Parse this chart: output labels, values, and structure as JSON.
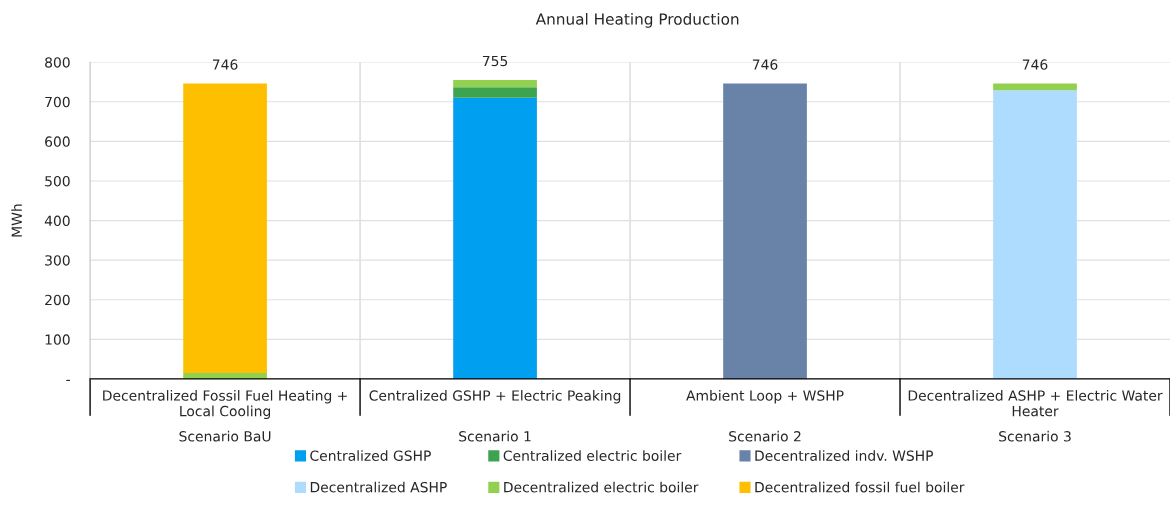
{
  "chart_data": {
    "type": "bar",
    "title": "Annual Heating Production",
    "ylabel": "MWh",
    "categories": [
      "Decentralized Fossil Fuel Heating + Local Cooling",
      "Centralized GSHP + Electric Peaking",
      "Ambient Loop + WSHP",
      "Decentralized ASHP + Electric Water Heater"
    ],
    "stacked": true,
    "series": [
      {
        "name": "Centralized GSHP",
        "color": "#009fef",
        "values": [
          0,
          710,
          0,
          0
        ]
      },
      {
        "name": "Centralized electric boiler",
        "color": "#3ca451",
        "values": [
          0,
          27,
          0,
          0
        ]
      },
      {
        "name": "Decentralized indv. WSHP",
        "color": "#6882a8",
        "values": [
          0,
          0,
          746,
          0
        ]
      },
      {
        "name": "Decentralized ASHP",
        "color": "#aedcff",
        "values": [
          0,
          0,
          0,
          729
        ]
      },
      {
        "name": "Decentralized electric boiler",
        "color": "#92d050",
        "values": [
          15,
          18,
          0,
          17
        ]
      },
      {
        "name": "Decentralized fossil fuel boiler",
        "color": "#fdbf00",
        "values": [
          731,
          0,
          0,
          0
        ]
      }
    ],
    "totals": [
      "746",
      "755",
      "746",
      "746"
    ],
    "ylim": [
      0,
      800
    ],
    "yticks": [
      {
        "value": 0,
        "label": "-"
      },
      100,
      200,
      300,
      400,
      500,
      600,
      700,
      800
    ],
    "grid": true,
    "legend": "bottom",
    "annotations": [
      "Scenario BaU",
      "Scenario 1",
      "Scenario 2",
      "Scenario 3"
    ]
  }
}
